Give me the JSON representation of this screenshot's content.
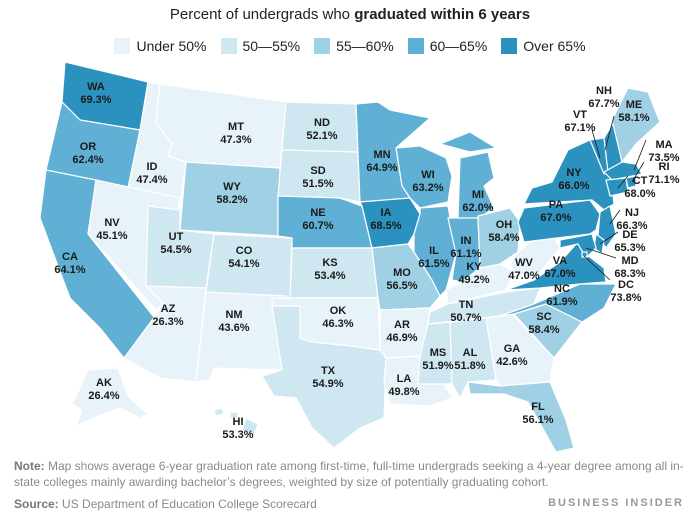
{
  "title": {
    "prefix": "Percent of undergrads who ",
    "bold": "graduated within 6 years"
  },
  "legend": [
    {
      "label": "Under 50%",
      "color": "#e7f3f9"
    },
    {
      "label": "50—55%",
      "color": "#cfe7f1"
    },
    {
      "label": "55—60%",
      "color": "#9fd0e4"
    },
    {
      "label": "60—65%",
      "color": "#5fb0d4"
    },
    {
      "label": "Over 65%",
      "color": "#2b92c0"
    }
  ],
  "states": [
    {
      "id": "WA",
      "value": "69.3%",
      "bin": 4
    },
    {
      "id": "OR",
      "value": "62.4%",
      "bin": 3
    },
    {
      "id": "CA",
      "value": "64.1%",
      "bin": 3
    },
    {
      "id": "ID",
      "value": "47.4%",
      "bin": 0
    },
    {
      "id": "NV",
      "value": "45.1%",
      "bin": 0
    },
    {
      "id": "MT",
      "value": "47.3%",
      "bin": 0
    },
    {
      "id": "WY",
      "value": "58.2%",
      "bin": 2
    },
    {
      "id": "UT",
      "value": "54.5%",
      "bin": 1
    },
    {
      "id": "AZ",
      "value": "26.3%",
      "bin": 0
    },
    {
      "id": "CO",
      "value": "54.1%",
      "bin": 1
    },
    {
      "id": "NM",
      "value": "43.6%",
      "bin": 0
    },
    {
      "id": "ND",
      "value": "52.1%",
      "bin": 1
    },
    {
      "id": "SD",
      "value": "51.5%",
      "bin": 1
    },
    {
      "id": "NE",
      "value": "60.7%",
      "bin": 3
    },
    {
      "id": "KS",
      "value": "53.4%",
      "bin": 1
    },
    {
      "id": "OK",
      "value": "46.3%",
      "bin": 0
    },
    {
      "id": "TX",
      "value": "54.9%",
      "bin": 1
    },
    {
      "id": "MN",
      "value": "64.9%",
      "bin": 3
    },
    {
      "id": "IA",
      "value": "68.5%",
      "bin": 4
    },
    {
      "id": "MO",
      "value": "56.5%",
      "bin": 2
    },
    {
      "id": "AR",
      "value": "46.9%",
      "bin": 0
    },
    {
      "id": "LA",
      "value": "49.8%",
      "bin": 0
    },
    {
      "id": "WI",
      "value": "63.2%",
      "bin": 3
    },
    {
      "id": "IL",
      "value": "61.5%",
      "bin": 3
    },
    {
      "id": "MS",
      "value": "51.9%",
      "bin": 1
    },
    {
      "id": "MI",
      "value": "62.0%",
      "bin": 3
    },
    {
      "id": "IN",
      "value": "61.1%",
      "bin": 3
    },
    {
      "id": "KY",
      "value": "49.2%",
      "bin": 0
    },
    {
      "id": "TN",
      "value": "50.7%",
      "bin": 1
    },
    {
      "id": "AL",
      "value": "51.8%",
      "bin": 1
    },
    {
      "id": "OH",
      "value": "58.4%",
      "bin": 2
    },
    {
      "id": "WV",
      "value": "47.0%",
      "bin": 0
    },
    {
      "id": "GA",
      "value": "42.6%",
      "bin": 0
    },
    {
      "id": "FL",
      "value": "56.1%",
      "bin": 2
    },
    {
      "id": "SC",
      "value": "58.4%",
      "bin": 2
    },
    {
      "id": "NC",
      "value": "61.9%",
      "bin": 3
    },
    {
      "id": "VA",
      "value": "67.0%",
      "bin": 4
    },
    {
      "id": "PA",
      "value": "67.0%",
      "bin": 4
    },
    {
      "id": "NY",
      "value": "66.0%",
      "bin": 4
    },
    {
      "id": "VT",
      "value": "67.1%",
      "bin": 4
    },
    {
      "id": "NH",
      "value": "67.7%",
      "bin": 4
    },
    {
      "id": "ME",
      "value": "58.1%",
      "bin": 2
    },
    {
      "id": "MA",
      "value": "73.5%",
      "bin": 4
    },
    {
      "id": "RI",
      "value": "71.1%",
      "bin": 4
    },
    {
      "id": "CT",
      "value": "68.0%",
      "bin": 4
    },
    {
      "id": "NJ",
      "value": "66.3%",
      "bin": 4
    },
    {
      "id": "DE",
      "value": "65.3%",
      "bin": 4
    },
    {
      "id": "MD",
      "value": "68.3%",
      "bin": 4
    },
    {
      "id": "DC",
      "value": "73.8%",
      "bin": 4
    },
    {
      "id": "AK",
      "value": "26.4%",
      "bin": 0
    },
    {
      "id": "HI",
      "value": "53.3%",
      "bin": 1
    }
  ],
  "note": {
    "label": "Note:",
    "text": " Map shows average 6-year graduation rate among first-time, full-time undergrads seeking a 4-year degree among all in-state colleges mainly awarding bachelor’s degrees, weighted by size of potentially graduating cohort."
  },
  "source": {
    "label": "Source:",
    "text": " US Department of Education College Scorecard"
  },
  "brand": "BUSINESS INSIDER"
}
